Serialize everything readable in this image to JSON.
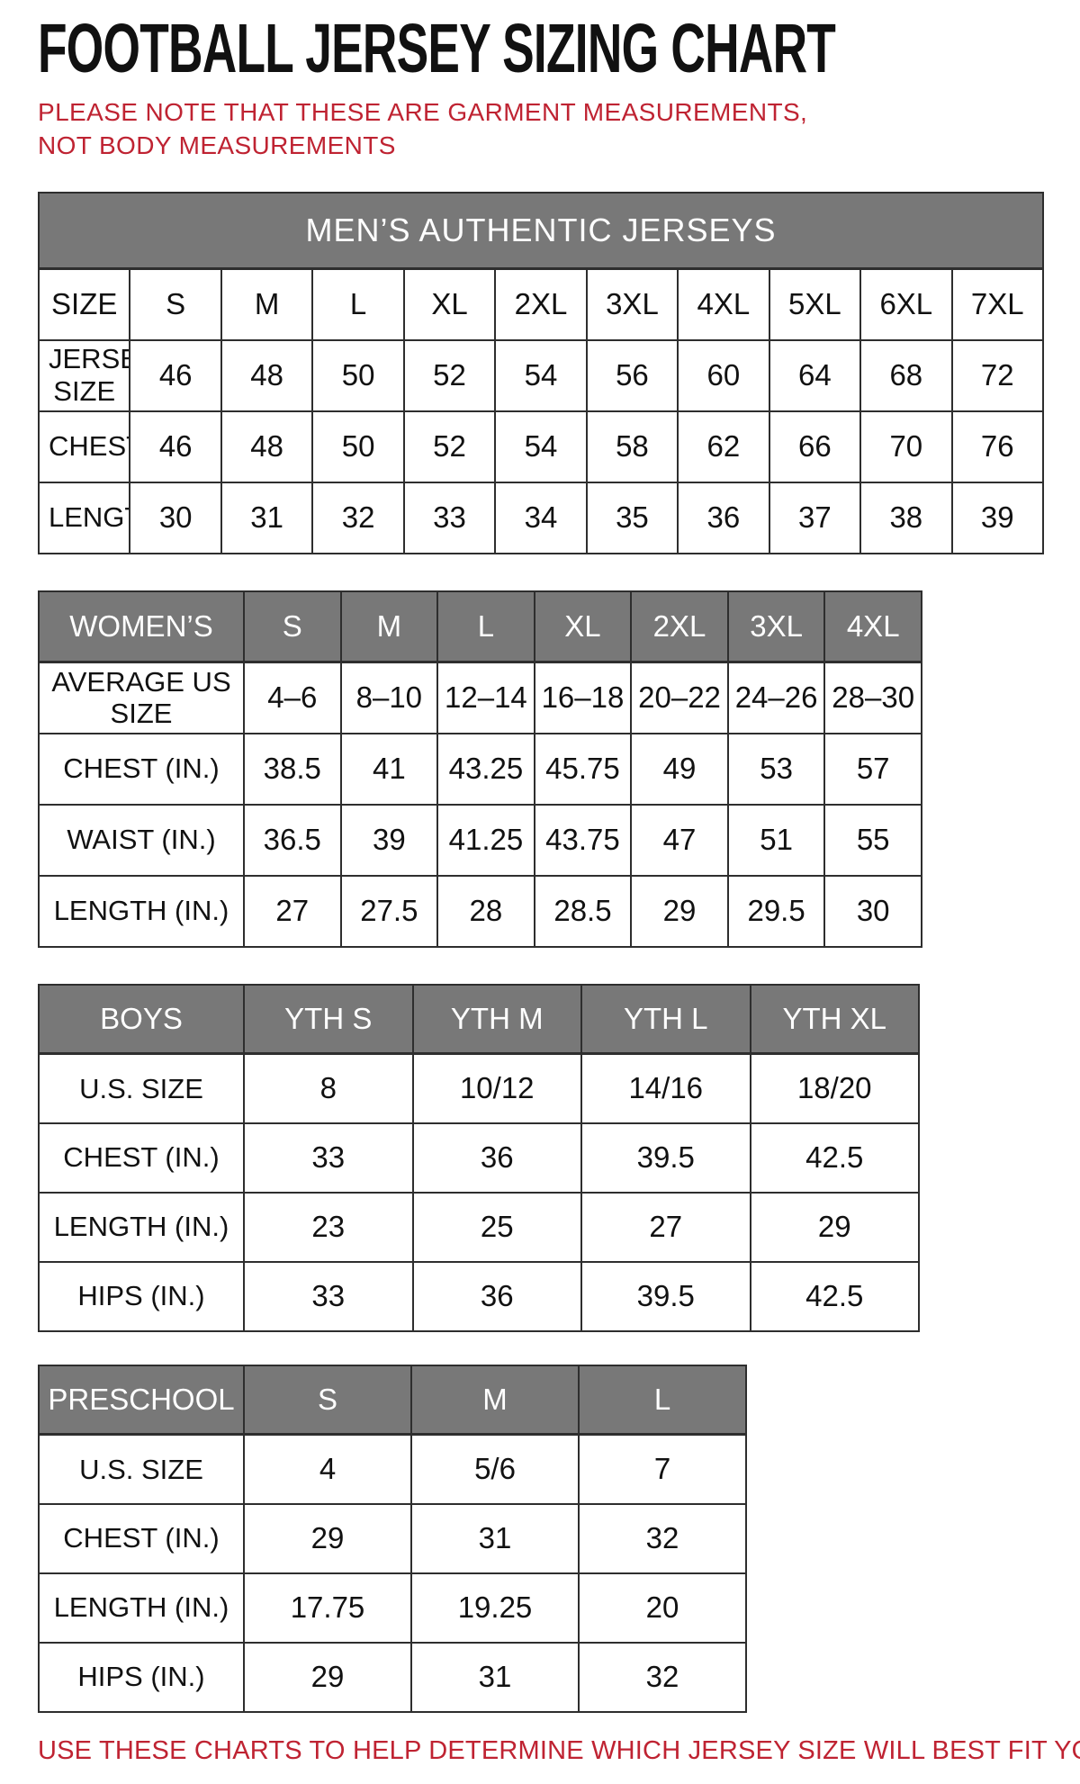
{
  "page": {
    "title": "FOOTBALL JERSEY SIZING CHART",
    "note": "PLEASE NOTE THAT THESE ARE GARMENT MEASUREMENTS, NOT BODY MEASUREMENTS",
    "footer": "USE THESE CHARTS TO HELP DETERMINE WHICH JERSEY SIZE WILL BEST FIT YOU.",
    "accent_red": "#bf2332",
    "header_gray": "#787878"
  },
  "tables": [
    {
      "id": "mens",
      "band_title": "MEN’S AUTHENTIC JERSEYS",
      "columns": [
        "SIZE",
        "S",
        "M",
        "L",
        "XL",
        "2XL",
        "3XL",
        "4XL",
        "5XL",
        "6XL",
        "7XL"
      ],
      "rows": [
        {
          "label": "JERSEY SIZE",
          "values": [
            "46",
            "48",
            "50",
            "52",
            "54",
            "56",
            "60",
            "64",
            "68",
            "72"
          ]
        },
        {
          "label": "CHEST(IN.)",
          "values": [
            "46",
            "48",
            "50",
            "52",
            "54",
            "58",
            "62",
            "66",
            "70",
            "76"
          ]
        },
        {
          "label": "LENGTH(IN.)",
          "values": [
            "30",
            "31",
            "32",
            "33",
            "34",
            "35",
            "36",
            "37",
            "38",
            "39"
          ]
        }
      ]
    },
    {
      "id": "womens",
      "columns": [
        "WOMEN’S",
        "S",
        "M",
        "L",
        "XL",
        "2XL",
        "3XL",
        "4XL"
      ],
      "rows": [
        {
          "label": "AVERAGE US SIZE",
          "values": [
            "4–6",
            "8–10",
            "12–14",
            "16–18",
            "20–22",
            "24–26",
            "28–30"
          ]
        },
        {
          "label": "CHEST (IN.)",
          "values": [
            "38.5",
            "41",
            "43.25",
            "45.75",
            "49",
            "53",
            "57"
          ]
        },
        {
          "label": "WAIST (IN.)",
          "values": [
            "36.5",
            "39",
            "41.25",
            "43.75",
            "47",
            "51",
            "55"
          ]
        },
        {
          "label": "LENGTH (IN.)",
          "values": [
            "27",
            "27.5",
            "28",
            "28.5",
            "29",
            "29.5",
            "30"
          ]
        }
      ]
    },
    {
      "id": "boys",
      "columns": [
        "BOYS",
        "YTH S",
        "YTH M",
        "YTH L",
        "YTH XL"
      ],
      "rows": [
        {
          "label": "U.S. SIZE",
          "values": [
            "8",
            "10/12",
            "14/16",
            "18/20"
          ]
        },
        {
          "label": "CHEST (IN.)",
          "values": [
            "33",
            "36",
            "39.5",
            "42.5"
          ]
        },
        {
          "label": "LENGTH (IN.)",
          "values": [
            "23",
            "25",
            "27",
            "29"
          ]
        },
        {
          "label": "HIPS (IN.)",
          "values": [
            "33",
            "36",
            "39.5",
            "42.5"
          ]
        }
      ]
    },
    {
      "id": "preschool",
      "columns": [
        "PRESCHOOL",
        "S",
        "M",
        "L"
      ],
      "rows": [
        {
          "label": "U.S. SIZE",
          "values": [
            "4",
            "5/6",
            "7"
          ]
        },
        {
          "label": "CHEST (IN.)",
          "values": [
            "29",
            "31",
            "32"
          ]
        },
        {
          "label": "LENGTH (IN.)",
          "values": [
            "17.75",
            "19.25",
            "20"
          ]
        },
        {
          "label": "HIPS (IN.)",
          "values": [
            "29",
            "31",
            "32"
          ]
        }
      ]
    }
  ]
}
